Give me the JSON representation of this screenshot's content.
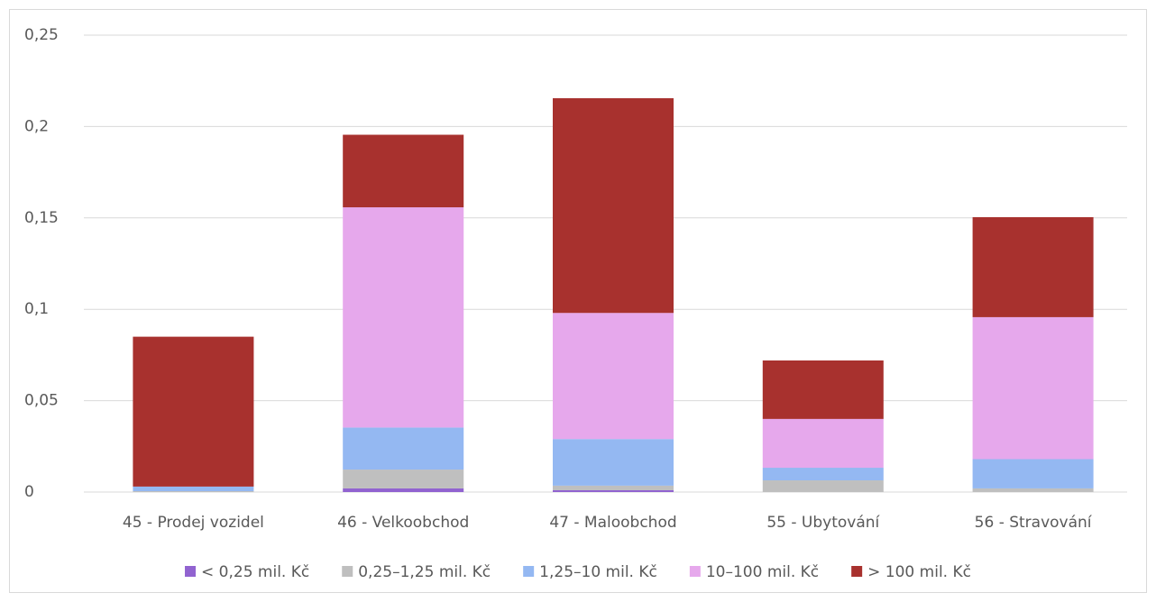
{
  "chart_data": {
    "type": "stacked_bar",
    "categories": [
      "45 - Prodej vozidel",
      "46 - Velkoobchod",
      "47 - Maloobchod",
      "55 - Ubytování",
      "56 - Stravování"
    ],
    "series": [
      {
        "name": "< 0,25 mil. Kč",
        "color": "#9163d0",
        "values": [
          0,
          0.002,
          0.001,
          0,
          0
        ]
      },
      {
        "name": "0,25–1,25 mil. Kč",
        "color": "#bfbfbf",
        "values": [
          0.0005,
          0.0103,
          0.0025,
          0.0064,
          0.002
        ]
      },
      {
        "name": "1,25–10 mil. Kč",
        "color": "#94b8f2",
        "values": [
          0.0025,
          0.023,
          0.0255,
          0.0069,
          0.016
        ]
      },
      {
        "name": "10–100 mil. Kč",
        "color": "#e6a8ec",
        "values": [
          0,
          0.1205,
          0.069,
          0.0267,
          0.0777
        ]
      },
      {
        "name": "> 100 mil. Kč",
        "color": "#a8312e",
        "values": [
          0.082,
          0.0397,
          0.1175,
          0.032,
          0.0547
        ]
      }
    ],
    "ylim": [
      0,
      0.25
    ],
    "yticks": [
      0,
      {
        "value": 0.05,
        "label": "0,05"
      },
      {
        "value": 0.1,
        "label": "0,1"
      },
      {
        "value": 0.15,
        "label": "0,15"
      },
      {
        "value": 0.2,
        "label": "0,2"
      },
      {
        "value": 0.25,
        "label": "0,25"
      }
    ],
    "grid": true,
    "legend": "bottom"
  }
}
